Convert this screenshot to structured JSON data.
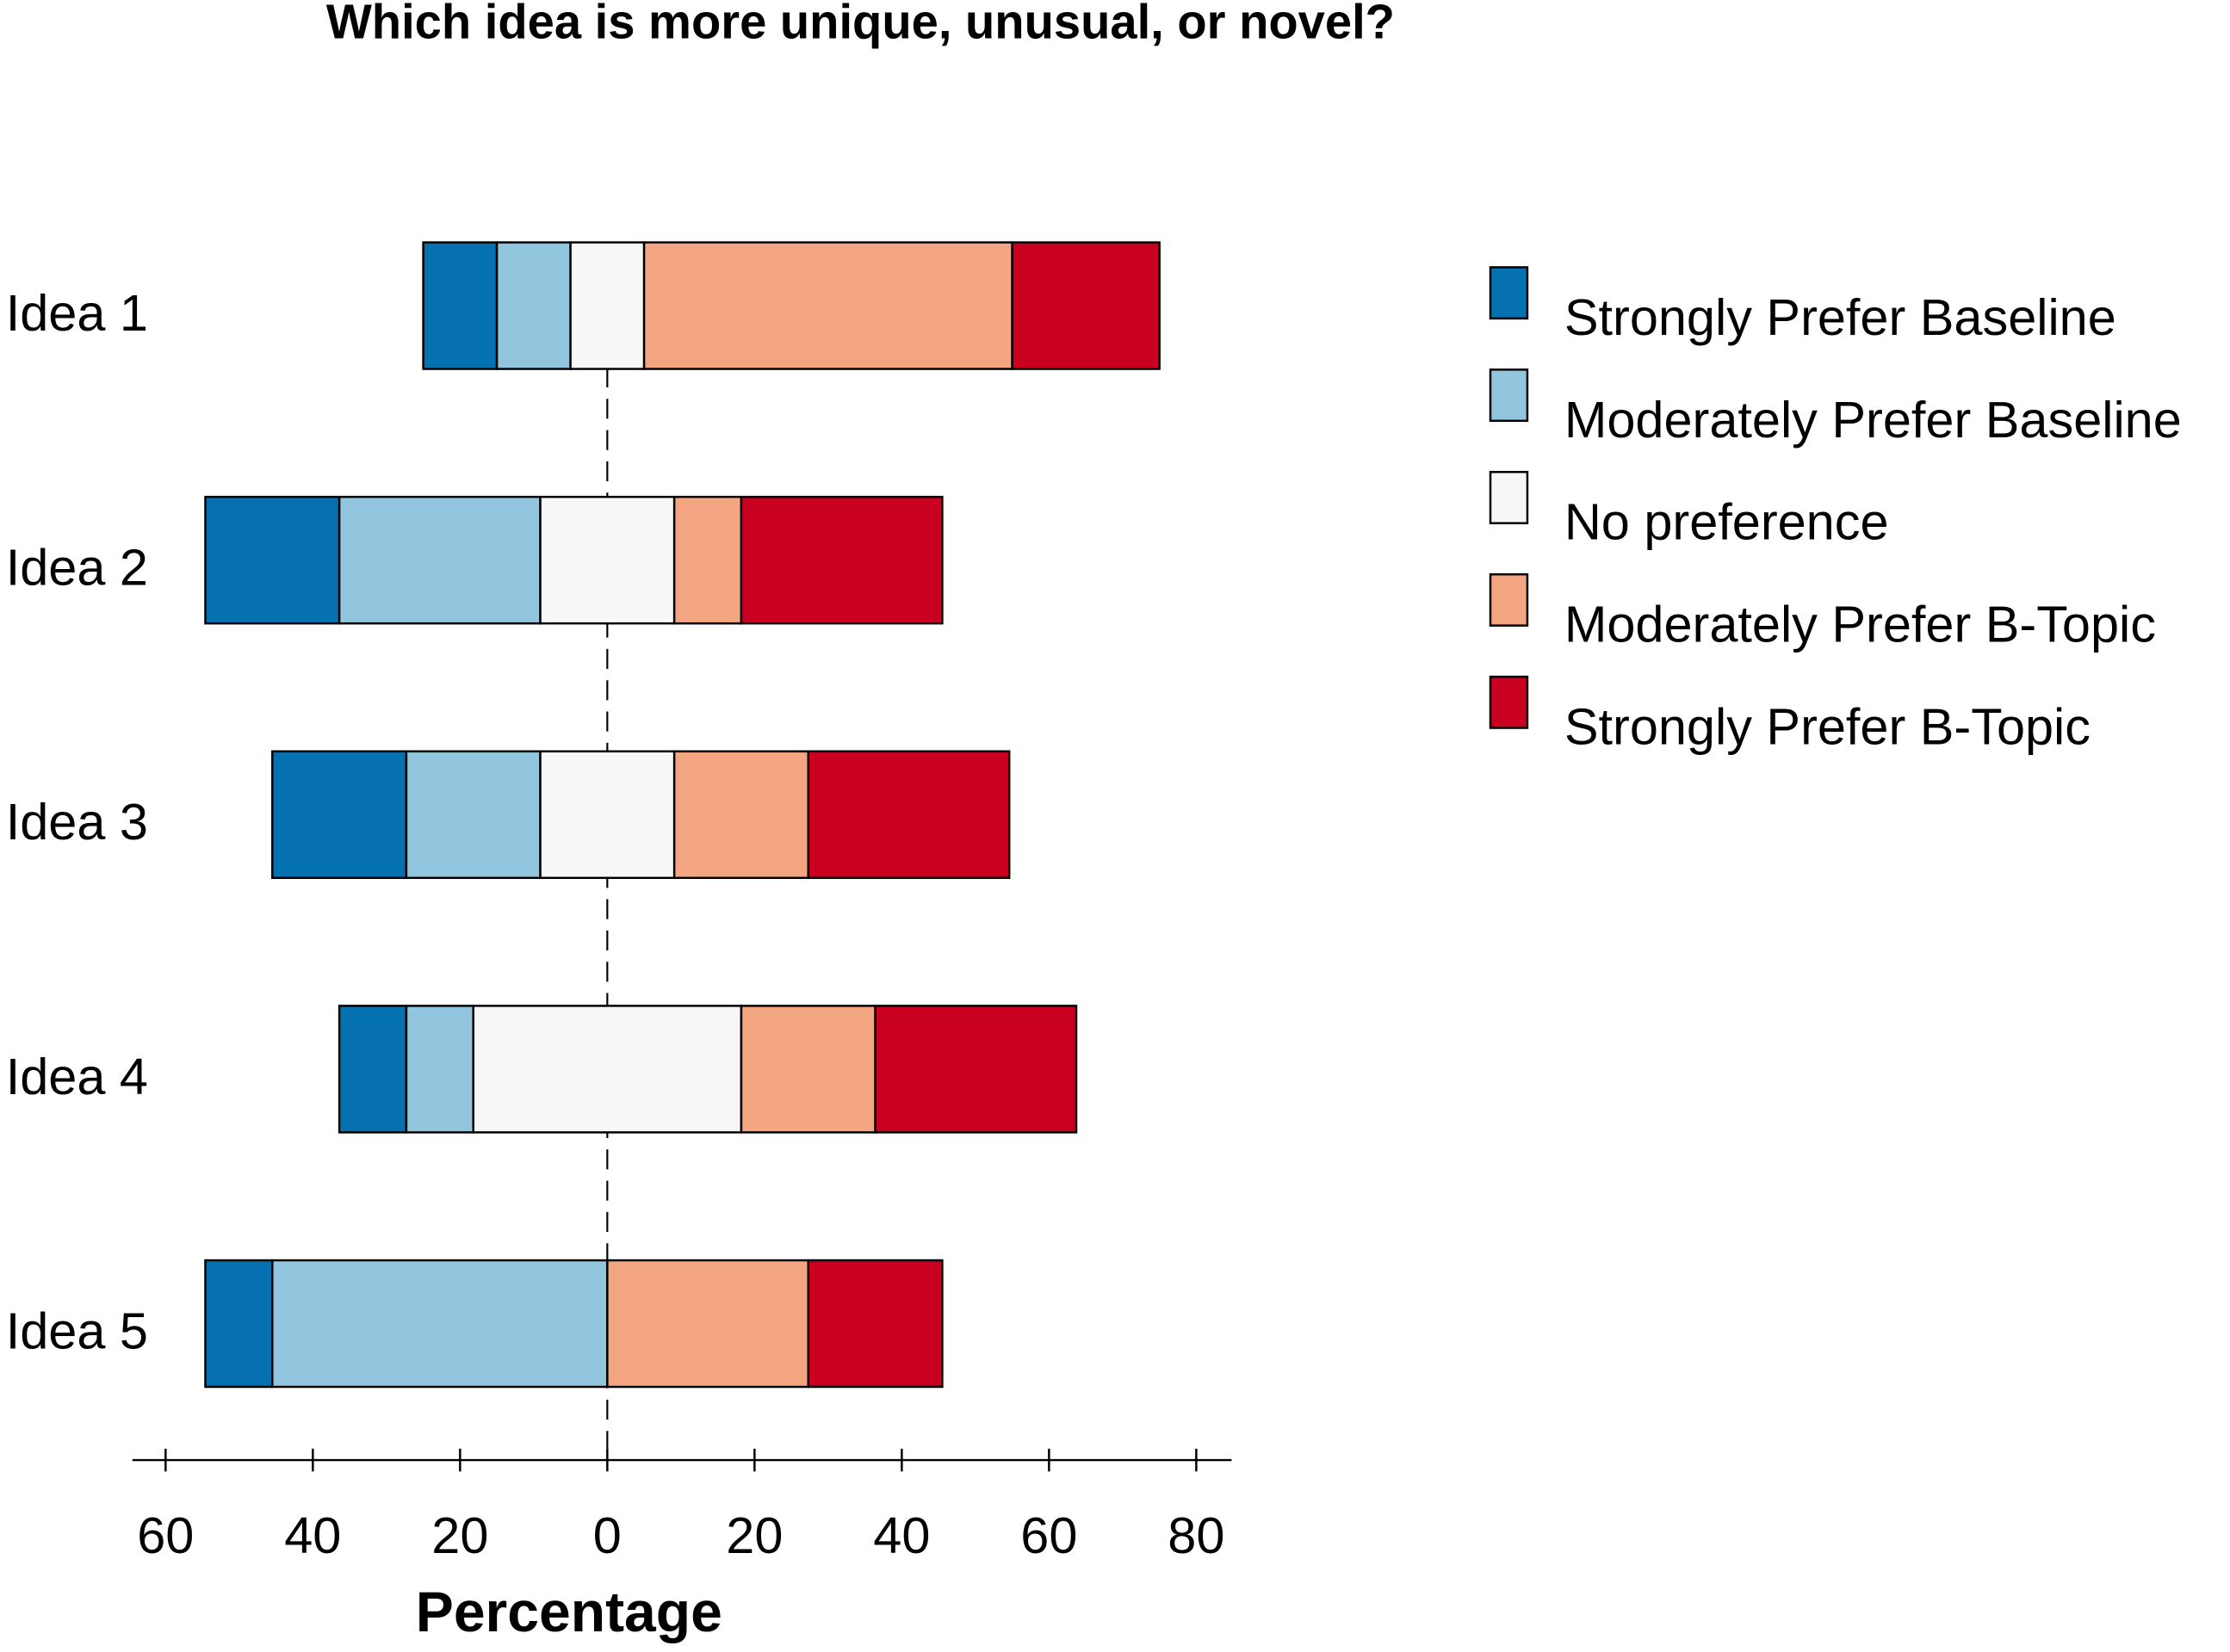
{
  "chart_data": {
    "type": "diverging-bar",
    "title": "Which idea is more unique, unusual, or novel?",
    "x_label": "Percentage",
    "categories": [
      "Idea 1",
      "Idea 2",
      "Idea 3",
      "Idea 4",
      "Idea 5"
    ],
    "series": [
      {
        "name": "Strongly Prefer Baseline",
        "color": "#0571b0",
        "values": [
          10,
          18.2,
          18.2,
          9.1,
          9.1
        ]
      },
      {
        "name": "Moderately Prefer Baseline",
        "color": "#92c5de",
        "values": [
          10,
          27.3,
          18.2,
          9.1,
          45.5
        ]
      },
      {
        "name": "No preference",
        "color": "#f7f7f7",
        "values": [
          10,
          18.2,
          18.2,
          36.4,
          0
        ]
      },
      {
        "name": "Moderately Prefer B-Topic",
        "color": "#f4a582",
        "values": [
          50,
          9.1,
          18.2,
          18.2,
          27.3
        ]
      },
      {
        "name": "Strongly Prefer B-Topic",
        "color": "#ca0020",
        "values": [
          20,
          27.3,
          27.3,
          27.3,
          18.2
        ]
      }
    ],
    "xlim": [
      -64.5,
      84.8
    ],
    "xticks": [
      {
        "value": -60,
        "label": "60"
      },
      {
        "value": -40,
        "label": "40"
      },
      {
        "value": -20,
        "label": "20"
      },
      0,
      20,
      40,
      60,
      80
    ],
    "legend": "right"
  }
}
